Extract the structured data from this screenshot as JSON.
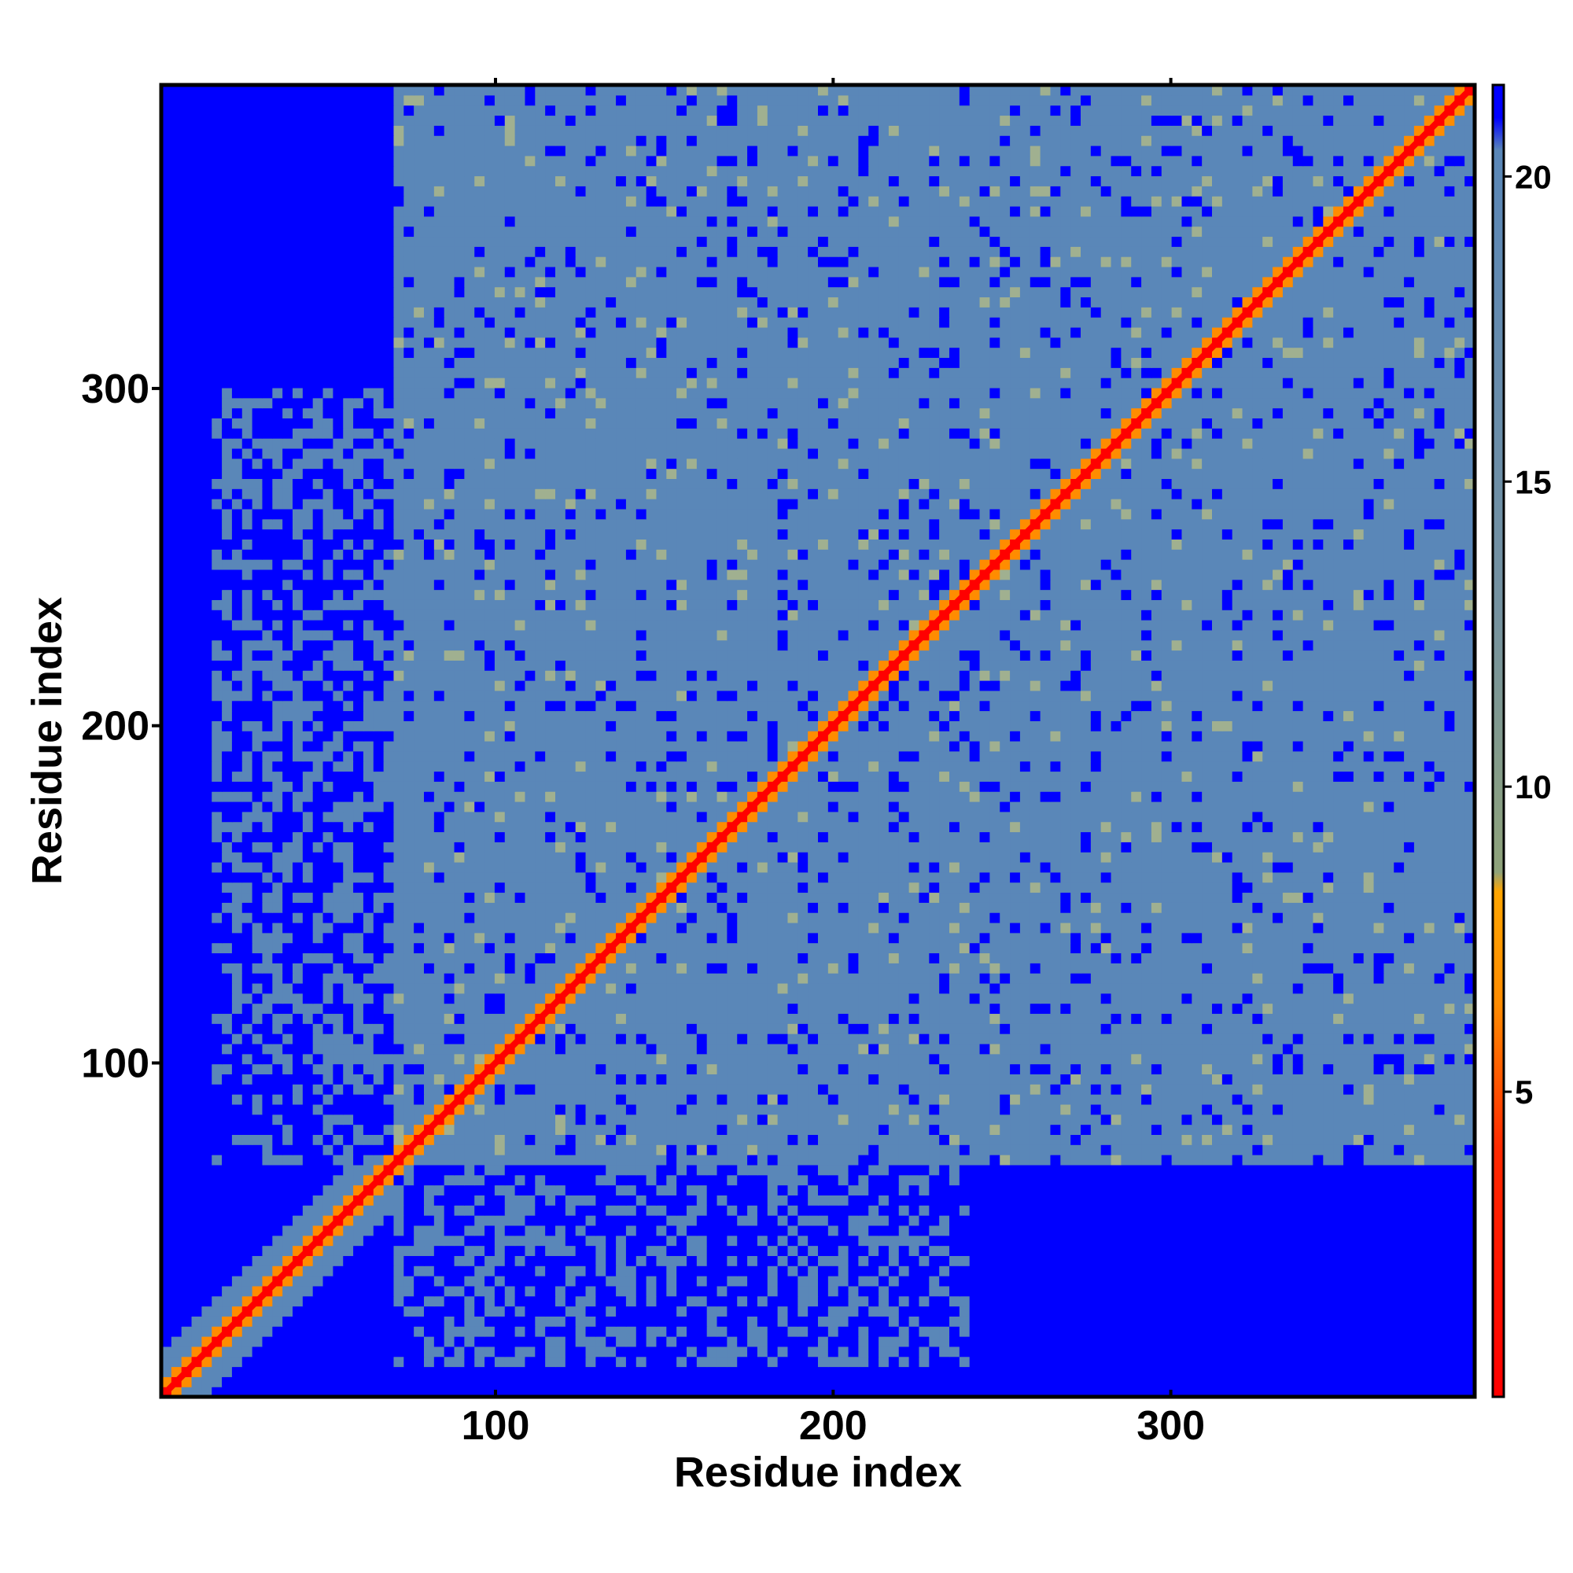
{
  "chart_data": {
    "type": "heatmap",
    "title": "",
    "xlabel": "Residue index",
    "ylabel": "Residue index",
    "xlim": [
      1,
      390
    ],
    "ylim": [
      1,
      390
    ],
    "x_ticks": [
      100,
      200,
      300
    ],
    "y_ticks": [
      100,
      200,
      300
    ],
    "colorbar": {
      "ticks": [
        5,
        10,
        15,
        20
      ],
      "range": [
        0,
        21.5
      ],
      "stops": [
        {
          "value": 0.0,
          "color": "#ff0000"
        },
        {
          "value": 4.0,
          "color": "#ff2a00"
        },
        {
          "value": 6.5,
          "color": "#ff8c00"
        },
        {
          "value": 8.3,
          "color": "#ffa500"
        },
        {
          "value": 8.6,
          "color": "#8fa37a"
        },
        {
          "value": 13.0,
          "color": "#7592a0"
        },
        {
          "value": 20.5,
          "color": "#5a87b8"
        },
        {
          "value": 21.0,
          "color": "#0000ff"
        },
        {
          "value": 21.5,
          "color": "#0000ff"
        }
      ]
    },
    "matrix_description_values": {
      "diagonal_distance": 0,
      "background_far": 21.5,
      "interior_typical": 18
    },
    "colors": {
      "far": "#0000ff",
      "mid": "#5a87b8",
      "near_edge": "#a0b090",
      "close": "#ff8c00",
      "contact": "#ff0000"
    }
  }
}
